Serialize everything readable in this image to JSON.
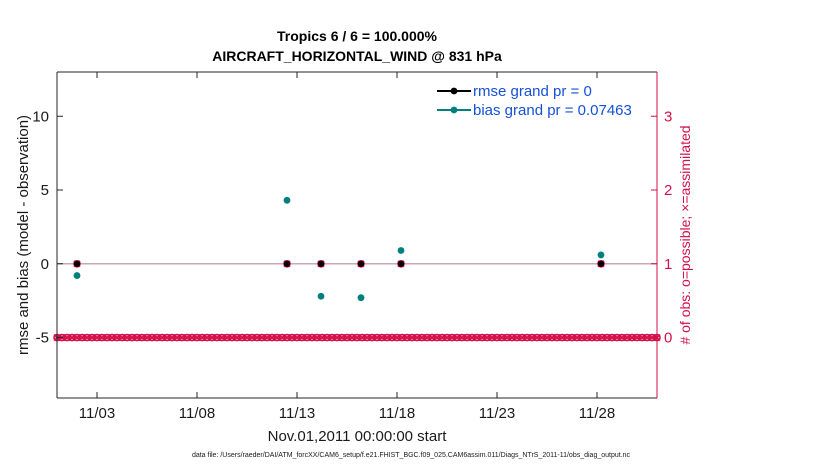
{
  "title_line1": "Tropics 6 / 6 = 100.000%",
  "title_line2": "AIRCRAFT_HORIZONTAL_WIND @ 831 hPa",
  "xlabel": "Nov.01,2011 00:00:00 start",
  "footer": "data file: /Users/raeder/DAI/ATM_forcXX/CAM6_setup/f.e21.FHIST_BGC.f09_025.CAM6assim.011/Diags_NTrS_2011-11/obs_diag_output.nc",
  "colors": {
    "rmse": "#000000",
    "bias": "#007f7f",
    "obs_count": "#d4104a",
    "zero_line": "#c8a8b4",
    "legend_text": "#1450d8"
  },
  "chart_data": {
    "type": "scatter",
    "title": "Tropics 6 / 6 = 100.000%",
    "subtitle": "AIRCRAFT_HORIZONTAL_WIND @ 831 hPa",
    "xlabel": "Nov.01,2011 00:00:00 start",
    "ylabel_left": "rmse and bias (model - observation)",
    "ylabel_right": "# of obs: o=possible; ×=assimilated",
    "xlim": [
      0.5,
      30.5
    ],
    "ylim_left": [
      -9.1,
      13
    ],
    "ylim_right": [
      -0.82,
      3.6
    ],
    "x_ticks": [
      {
        "x": 2.5,
        "label": "11/03"
      },
      {
        "x": 7.5,
        "label": "11/08"
      },
      {
        "x": 12.5,
        "label": "11/13"
      },
      {
        "x": 17.5,
        "label": "11/18"
      },
      {
        "x": 22.5,
        "label": "11/23"
      },
      {
        "x": 27.5,
        "label": "11/28"
      }
    ],
    "y_ticks_left": [
      10,
      5,
      0,
      -5
    ],
    "y_ticks_right": [
      3,
      2,
      1,
      0
    ],
    "grid": false,
    "legend_position": "top-right",
    "series": [
      {
        "name": "rmse grand pr = 0",
        "axis": "left",
        "points": [
          [
            1.5,
            0
          ],
          [
            12.0,
            0
          ],
          [
            13.7,
            0
          ],
          [
            15.7,
            0
          ],
          [
            17.7,
            0
          ],
          [
            27.7,
            0
          ]
        ]
      },
      {
        "name": "bias grand pr = 0.07463",
        "axis": "left",
        "points": [
          [
            1.5,
            -0.8
          ],
          [
            12.0,
            4.3
          ],
          [
            13.7,
            -2.2
          ],
          [
            15.7,
            -2.3
          ],
          [
            17.7,
            0.9
          ],
          [
            27.7,
            0.6
          ]
        ]
      },
      {
        "name": "possible",
        "axis": "right",
        "marker": "o",
        "start": 0.5,
        "step": 0.25,
        "count": 121,
        "nonzero": [
          [
            1.5,
            1
          ],
          [
            12.0,
            1
          ],
          [
            13.7,
            1
          ],
          [
            15.7,
            1
          ],
          [
            17.7,
            1
          ],
          [
            27.7,
            1
          ]
        ]
      },
      {
        "name": "assimilated",
        "axis": "right",
        "marker": "x",
        "start": 0.5,
        "step": 0.25,
        "count": 121,
        "nonzero": [
          [
            1.5,
            1
          ],
          [
            12.0,
            1
          ],
          [
            13.7,
            1
          ],
          [
            15.7,
            1
          ],
          [
            17.7,
            1
          ],
          [
            27.7,
            1
          ]
        ]
      }
    ]
  }
}
